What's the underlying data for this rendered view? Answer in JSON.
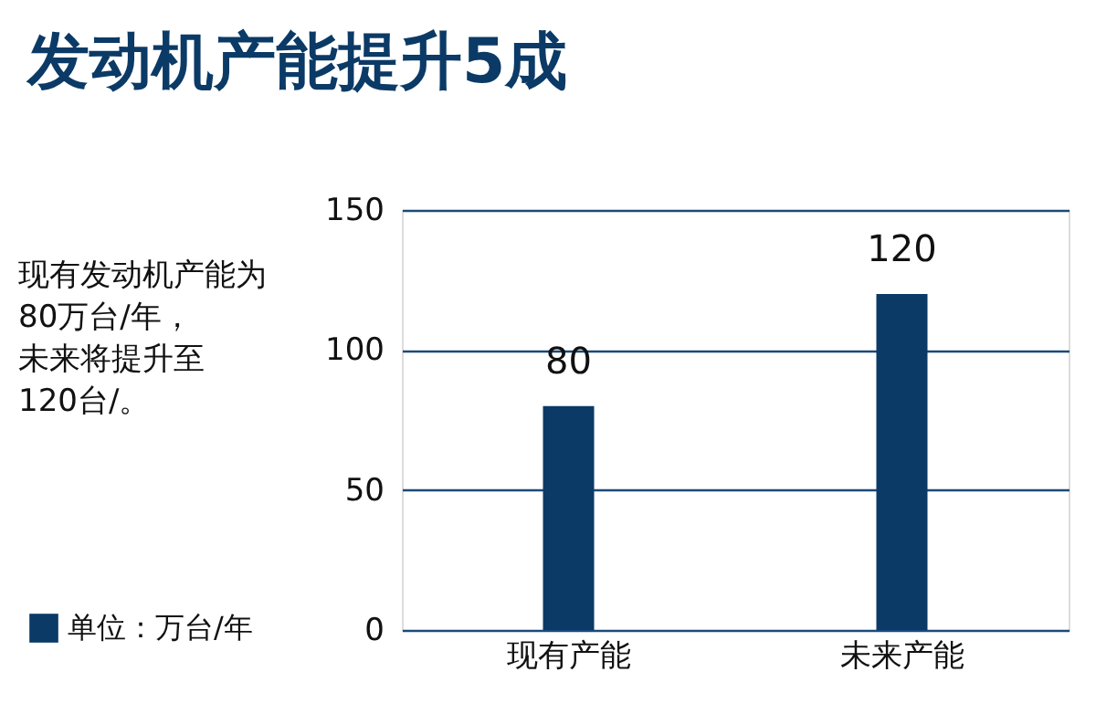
{
  "chart_data": {
    "type": "bar",
    "title": "发动机产能提升5成",
    "annotations": [
      "现有发动机产能为80万台/年，未来将提升至120台/。"
    ],
    "categories": [
      "现有产能",
      "未来产能"
    ],
    "series": [
      {
        "name": "单位：万台/年",
        "color": "#0b3a66",
        "values": [
          80,
          120
        ]
      }
    ],
    "ylim": [
      0,
      150
    ],
    "yticks": [
      0,
      50,
      100,
      150
    ],
    "grid": "y",
    "legend": "bottom left",
    "data_labels": true
  }
}
